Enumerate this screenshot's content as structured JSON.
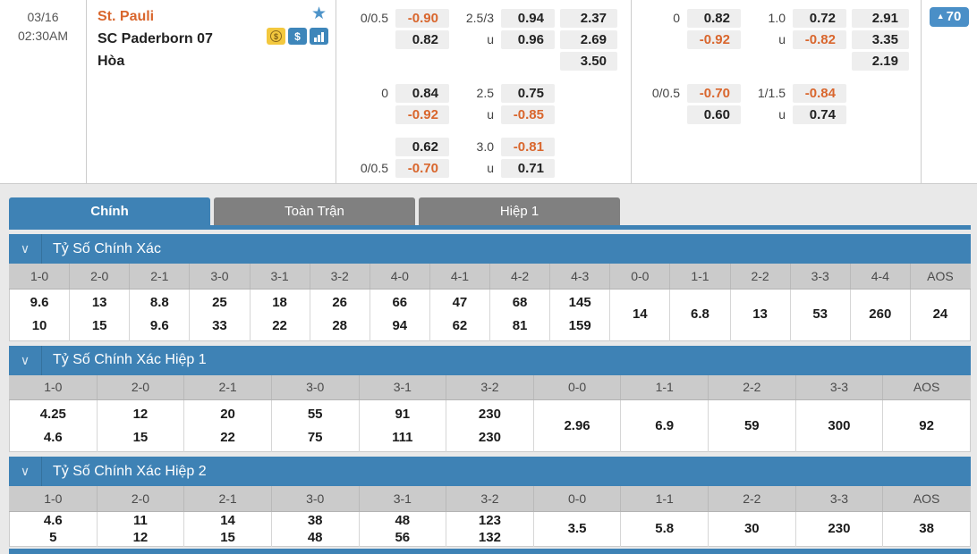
{
  "colors": {
    "accent_blue": "#3e82b5",
    "badge_blue": "#4a8fc7",
    "negative_orange": "#d9662d",
    "tab_gray": "#808080",
    "header_row_gray": "#cbcbcb",
    "chip_gray": "#eeeeee",
    "home_team_orange": "#d9662d",
    "icon_yellow": "#f3c83e"
  },
  "ui": {
    "chevron": "∨",
    "star": "★",
    "dollar": "$"
  },
  "match": {
    "date": "03/16",
    "time": "02:30AM",
    "teams": {
      "home": "St. Pauli",
      "away": "SC Paderborn 07",
      "draw": "Hòa"
    },
    "icons": [
      "favorite-star-icon",
      "coin-icon",
      "dollar-icon",
      "stats-icon"
    ],
    "badge": {
      "arrow": "▲",
      "count": "70"
    }
  },
  "odds_groups": [
    {
      "name": "odds-group-1",
      "blocks": [
        {
          "rows": [
            [
              "0/0.5",
              "-0.90",
              "2.5/3",
              "0.94",
              "2.37"
            ],
            [
              "",
              "0.82",
              "u",
              "0.96",
              "2.69"
            ],
            [
              "",
              "",
              "",
              "",
              "3.50"
            ]
          ]
        },
        {
          "rows": [
            [
              "0",
              "0.84",
              "2.5",
              "0.75",
              ""
            ],
            [
              "",
              "-0.92",
              "u",
              "-0.85",
              ""
            ]
          ]
        },
        {
          "rows": [
            [
              "",
              "0.62",
              "3.0",
              "-0.81",
              ""
            ],
            [
              "0/0.5",
              "-0.70",
              "u",
              "0.71",
              ""
            ]
          ]
        }
      ]
    },
    {
      "name": "odds-group-2",
      "blocks": [
        {
          "rows": [
            [
              "0",
              "0.82",
              "1.0",
              "0.72",
              "2.91"
            ],
            [
              "",
              "-0.92",
              "u",
              "-0.82",
              "3.35"
            ],
            [
              "",
              "",
              "",
              "",
              "2.19"
            ]
          ]
        },
        {
          "rows": [
            [
              "0/0.5",
              "-0.70",
              "1/1.5",
              "-0.84",
              ""
            ],
            [
              "",
              "0.60",
              "u",
              "0.74",
              ""
            ]
          ]
        },
        {
          "rows": []
        }
      ]
    }
  ],
  "tabs": [
    {
      "name": "tab-main",
      "label": "Chính",
      "active": true
    },
    {
      "name": "tab-full-match",
      "label": "Toàn Trận",
      "active": false
    },
    {
      "name": "tab-first-half",
      "label": "Hiệp 1",
      "active": false
    }
  ],
  "sections": [
    {
      "name": "correct-score",
      "title": "Tỷ Số Chính Xác",
      "compact": false,
      "columns": [
        {
          "label": "1-0",
          "values": [
            "9.6",
            "10"
          ]
        },
        {
          "label": "2-0",
          "values": [
            "13",
            "15"
          ]
        },
        {
          "label": "2-1",
          "values": [
            "8.8",
            "9.6"
          ]
        },
        {
          "label": "3-0",
          "values": [
            "25",
            "33"
          ]
        },
        {
          "label": "3-1",
          "values": [
            "18",
            "22"
          ]
        },
        {
          "label": "3-2",
          "values": [
            "26",
            "28"
          ]
        },
        {
          "label": "4-0",
          "values": [
            "66",
            "94"
          ]
        },
        {
          "label": "4-1",
          "values": [
            "47",
            "62"
          ]
        },
        {
          "label": "4-2",
          "values": [
            "68",
            "81"
          ]
        },
        {
          "label": "4-3",
          "values": [
            "145",
            "159"
          ]
        },
        {
          "label": "0-0",
          "values": [
            "14"
          ]
        },
        {
          "label": "1-1",
          "values": [
            "6.8"
          ]
        },
        {
          "label": "2-2",
          "values": [
            "13"
          ]
        },
        {
          "label": "3-3",
          "values": [
            "53"
          ]
        },
        {
          "label": "4-4",
          "values": [
            "260"
          ]
        },
        {
          "label": "AOS",
          "values": [
            "24"
          ]
        }
      ]
    },
    {
      "name": "correct-score-1st-half",
      "title": "Tỷ Số Chính Xác Hiệp 1",
      "compact": false,
      "columns": [
        {
          "label": "1-0",
          "values": [
            "4.25",
            "4.6"
          ]
        },
        {
          "label": "2-0",
          "values": [
            "12",
            "15"
          ]
        },
        {
          "label": "2-1",
          "values": [
            "20",
            "22"
          ]
        },
        {
          "label": "3-0",
          "values": [
            "55",
            "75"
          ]
        },
        {
          "label": "3-1",
          "values": [
            "91",
            "111"
          ]
        },
        {
          "label": "3-2",
          "values": [
            "230",
            "230"
          ]
        },
        {
          "label": "0-0",
          "values": [
            "2.96"
          ]
        },
        {
          "label": "1-1",
          "values": [
            "6.9"
          ]
        },
        {
          "label": "2-2",
          "values": [
            "59"
          ]
        },
        {
          "label": "3-3",
          "values": [
            "300"
          ]
        },
        {
          "label": "AOS",
          "values": [
            "92"
          ]
        }
      ]
    },
    {
      "name": "correct-score-2nd-half",
      "title": "Tỷ Số Chính Xác Hiệp 2",
      "compact": true,
      "columns": [
        {
          "label": "1-0",
          "values": [
            "4.6",
            "5"
          ]
        },
        {
          "label": "2-0",
          "values": [
            "11",
            "12"
          ]
        },
        {
          "label": "2-1",
          "values": [
            "14",
            "15"
          ]
        },
        {
          "label": "3-0",
          "values": [
            "38",
            "48"
          ]
        },
        {
          "label": "3-1",
          "values": [
            "48",
            "56"
          ]
        },
        {
          "label": "3-2",
          "values": [
            "123",
            "132"
          ]
        },
        {
          "label": "0-0",
          "values": [
            "3.5"
          ]
        },
        {
          "label": "1-1",
          "values": [
            "5.8"
          ]
        },
        {
          "label": "2-2",
          "values": [
            "30"
          ]
        },
        {
          "label": "3-3",
          "values": [
            "230"
          ]
        },
        {
          "label": "AOS",
          "values": [
            "38"
          ]
        }
      ]
    }
  ]
}
